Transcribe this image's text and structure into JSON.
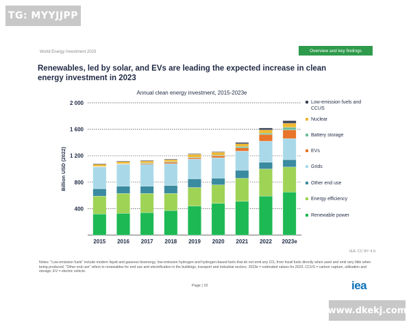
{
  "watermark_top": "TG: MYYJJPP",
  "watermark_bottom": "www.dkekj.com",
  "publication_title": "World Energy Investment 2023",
  "section_tag": "Overview and key findings",
  "headline": "Renewables, led by solar, and EVs are leading the expected increase in clean energy investment in 2023",
  "source": "IEA. CC BY 4.0.",
  "notes": "Notes: \"Low-emission fuels\" include modern liquid and gaseous bioenergy, low-emission hydrogen and hydrogen-based fuels that do not emit any CO₂ from fossil fuels directly when used and emit very little when being produced. \"Other end use\" refers to renewables for end use and electrification in the buildings, transport and industrial sectors. 2023e = estimated values for 2023. CCUS = carbon capture, utilisation and storage; EV = electric vehicle.",
  "page_label": "Page | 10",
  "logo_text": "iea",
  "chart_data": {
    "type": "bar",
    "stacked": true,
    "title": "Annual clean energy investment, 2015-2023e",
    "ylabel": "Billion USD (2022)",
    "xlabel": "",
    "ylim": [
      0,
      2000
    ],
    "yticks": [
      400,
      800,
      1200,
      1600,
      2000
    ],
    "ytick_labels": [
      "400",
      "800",
      "1 200",
      "1 600",
      "2 000"
    ],
    "grid": true,
    "legend_position": "right",
    "categories": [
      "2015",
      "2016",
      "2017",
      "2018",
      "2019",
      "2020",
      "2021",
      "2022",
      "2023e"
    ],
    "series": [
      {
        "name": "Renewable power",
        "color": "#1db954",
        "values": [
          320,
          330,
          340,
          370,
          440,
          480,
          510,
          590,
          650
        ]
      },
      {
        "name": "Energy efficiency",
        "color": "#9fd356",
        "values": [
          270,
          300,
          290,
          260,
          280,
          280,
          350,
          410,
          380
        ]
      },
      {
        "name": "Other end use",
        "color": "#3a8aa0",
        "values": [
          110,
          110,
          110,
          120,
          130,
          100,
          120,
          100,
          110
        ]
      },
      {
        "name": "Grids",
        "color": "#a9d9e8",
        "values": [
          330,
          330,
          330,
          330,
          300,
          310,
          290,
          320,
          320
        ]
      },
      {
        "name": "EVs",
        "color": "#e8752a",
        "values": [
          5,
          5,
          10,
          20,
          20,
          30,
          50,
          100,
          130
        ]
      },
      {
        "name": "Battery storage",
        "color": "#6fbf9a",
        "values": [
          5,
          5,
          10,
          10,
          10,
          10,
          20,
          20,
          40
        ]
      },
      {
        "name": "Nuclear",
        "color": "#f0b82e",
        "values": [
          30,
          30,
          30,
          30,
          40,
          40,
          40,
          50,
          60
        ]
      },
      {
        "name": "Low-emission fuels and CCUS",
        "color": "#3d4555",
        "values": [
          10,
          10,
          10,
          10,
          10,
          10,
          20,
          30,
          40
        ]
      }
    ],
    "legend_order": [
      "Low-emission fuels and CCUS",
      "Nuclear",
      "Battery storage",
      "EVs",
      "Grids",
      "Other end use",
      "Energy efficiency",
      "Renewable power"
    ]
  }
}
